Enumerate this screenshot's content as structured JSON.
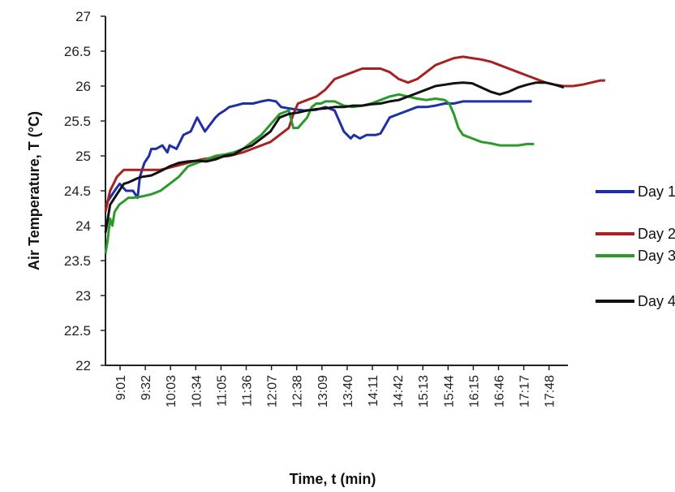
{
  "chart_data": {
    "type": "line",
    "xlabel": "Time, t (min)",
    "ylabel": "Air Temperature, T (°C)",
    "ylim": [
      22,
      27
    ],
    "yticks": [
      "22",
      "22.5",
      "23",
      "23.5",
      "24",
      "24.5",
      "25",
      "25.5",
      "26",
      "26.5",
      "27"
    ],
    "categories": [
      "9:01",
      "9:32",
      "10:03",
      "10:34",
      "11:05",
      "11:36",
      "12:07",
      "12:38",
      "13:09",
      "13:40",
      "14:11",
      "14:42",
      "15:13",
      "15:44",
      "16:15",
      "16:46",
      "17:17",
      "17:48"
    ],
    "grid": false,
    "legend_position": "right",
    "series": [
      {
        "name": "Day 1",
        "color": "#1f2fa8",
        "x": [
          0,
          10,
          20,
          31,
          45,
          60,
          70,
          75,
          85,
          95,
          100,
          110,
          124,
          135,
          140,
          155,
          170,
          186,
          200,
          217,
          240,
          248,
          260,
          270,
          283,
          300,
          322,
          340,
          356,
          372,
          383,
          400,
          420,
          434,
          460,
          480,
          500,
          520,
          535,
          542,
          555,
          570,
          590,
          600,
          620,
          640,
          660,
          680,
          700,
          720,
          740,
          760,
          780,
          800,
          820,
          840,
          860,
          880,
          890,
          900,
          910,
          920,
          930
        ],
        "y": [
          24.3,
          24.4,
          24.5,
          24.6,
          24.5,
          24.5,
          24.4,
          24.7,
          24.9,
          25.0,
          25.1,
          25.1,
          25.15,
          25.05,
          25.15,
          25.1,
          25.3,
          25.35,
          25.55,
          25.35,
          25.55,
          25.6,
          25.65,
          25.7,
          25.72,
          25.75,
          25.75,
          25.78,
          25.8,
          25.78,
          25.7,
          25.68,
          25.66,
          25.65,
          25.66,
          25.7,
          25.65,
          25.35,
          25.25,
          25.3,
          25.25,
          25.3,
          25.3,
          25.32,
          25.55,
          25.6,
          25.65,
          25.7,
          25.7,
          25.72,
          25.75,
          25.75,
          25.78,
          25.78,
          25.78,
          25.78,
          25.78,
          25.78,
          25.78,
          25.78,
          25.78,
          25.78,
          25.78
        ]
      },
      {
        "name": "Day 2",
        "color": "#a82020",
        "x": [
          0,
          10,
          25,
          40,
          60,
          80,
          100,
          120,
          150,
          180,
          210,
          240,
          270,
          300,
          320,
          340,
          360,
          380,
          400,
          410,
          420,
          440,
          460,
          470,
          480,
          500,
          520,
          540,
          560,
          580,
          600,
          620,
          640,
          660,
          680,
          700,
          720,
          740,
          760,
          780,
          800,
          820,
          840,
          860,
          880,
          900,
          920,
          940,
          960,
          980,
          1000,
          1020,
          1040,
          1060,
          1080,
          1090
        ],
        "y": [
          24.2,
          24.5,
          24.7,
          24.8,
          24.8,
          24.8,
          24.8,
          24.8,
          24.85,
          24.9,
          24.95,
          24.98,
          25.0,
          25.05,
          25.1,
          25.15,
          25.2,
          25.3,
          25.4,
          25.6,
          25.75,
          25.8,
          25.85,
          25.9,
          25.95,
          26.1,
          26.15,
          26.2,
          26.25,
          26.25,
          26.25,
          26.2,
          26.1,
          26.05,
          26.1,
          26.2,
          26.3,
          26.35,
          26.4,
          26.42,
          26.4,
          26.38,
          26.35,
          26.3,
          26.25,
          26.2,
          26.15,
          26.1,
          26.05,
          26.02,
          26.0,
          26.0,
          26.02,
          26.05,
          26.08,
          26.08
        ]
      },
      {
        "name": "Day 3",
        "color": "#2a9a2a",
        "x": [
          0,
          5,
          10,
          15,
          20,
          30,
          40,
          50,
          60,
          80,
          100,
          120,
          140,
          160,
          180,
          200,
          220,
          240,
          260,
          280,
          300,
          320,
          340,
          360,
          380,
          400,
          410,
          420,
          440,
          450,
          460,
          470,
          480,
          500,
          520,
          540,
          560,
          580,
          600,
          620,
          640,
          660,
          680,
          700,
          720,
          740,
          750,
          760,
          770,
          780,
          800,
          820,
          840,
          860,
          880,
          900,
          920,
          935
        ],
        "y": [
          23.6,
          23.8,
          24.1,
          24.0,
          24.2,
          24.3,
          24.35,
          24.4,
          24.4,
          24.42,
          24.45,
          24.5,
          24.6,
          24.7,
          24.85,
          24.9,
          24.95,
          25.0,
          25.02,
          25.05,
          25.1,
          25.2,
          25.3,
          25.45,
          25.6,
          25.65,
          25.4,
          25.4,
          25.55,
          25.7,
          25.75,
          25.75,
          25.78,
          25.78,
          25.72,
          25.7,
          25.72,
          25.75,
          25.8,
          25.85,
          25.88,
          25.85,
          25.82,
          25.8,
          25.82,
          25.8,
          25.75,
          25.6,
          25.4,
          25.3,
          25.25,
          25.2,
          25.18,
          25.15,
          25.15,
          25.15,
          25.17,
          25.17
        ]
      },
      {
        "name": "Day 4",
        "color": "#111111",
        "x": [
          0,
          10,
          20,
          30,
          40,
          50,
          60,
          70,
          80,
          100,
          120,
          140,
          160,
          180,
          200,
          220,
          240,
          260,
          280,
          300,
          320,
          340,
          360,
          380,
          400,
          420,
          440,
          460,
          480,
          500,
          520,
          540,
          560,
          580,
          600,
          620,
          640,
          660,
          680,
          700,
          720,
          740,
          760,
          780,
          800,
          820,
          840,
          860,
          880,
          900,
          920,
          940,
          960,
          980,
          1000
        ],
        "y": [
          23.9,
          24.3,
          24.4,
          24.5,
          24.6,
          24.62,
          24.65,
          24.68,
          24.7,
          24.72,
          24.78,
          24.85,
          24.9,
          24.92,
          24.93,
          24.92,
          24.95,
          25.0,
          25.02,
          25.1,
          25.15,
          25.25,
          25.35,
          25.55,
          25.6,
          25.62,
          25.65,
          25.67,
          25.68,
          25.7,
          25.7,
          25.72,
          25.72,
          25.74,
          25.75,
          25.78,
          25.8,
          25.85,
          25.9,
          25.95,
          26.0,
          26.02,
          26.04,
          26.05,
          26.04,
          25.98,
          25.92,
          25.88,
          25.92,
          25.98,
          26.02,
          26.05,
          26.05,
          26.02,
          25.98
        ]
      }
    ],
    "x_scale": [
      0,
      1000
    ]
  }
}
